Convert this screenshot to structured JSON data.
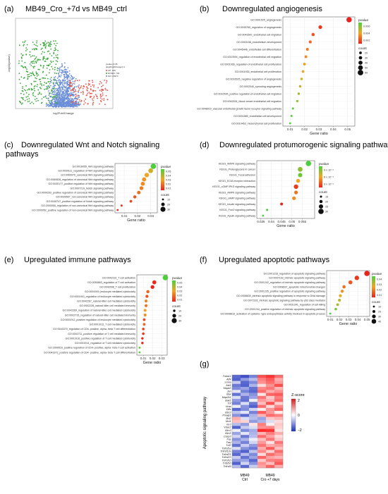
{
  "panels": {
    "a": {
      "letter": "(a)",
      "title": "MB49_Cro_+7d vs MB49_ctrl",
      "xlabel": "log2FoldChange",
      "ylabel": "-log10(pvalue)",
      "legend_lines": [
        "pvalue<0.05",
        "|log2FoldChange|>1",
        "UP: 105",
        "DOWN: 704",
        "NO: 20374"
      ]
    },
    "b": {
      "letter": "(b)",
      "title": "Downregulated angiogenesis"
    },
    "c": {
      "letter": "(c)",
      "title_line1": "Downregulated Wnt and Notch signaling",
      "title_line2": "pathways"
    },
    "d": {
      "letter": "(d)",
      "title": "Downregulated protumorogenic signaling pathways"
    },
    "e": {
      "letter": "(e)",
      "title": "Upregulated immune pathways"
    },
    "f": {
      "letter": "(f)",
      "title": "Upregulated apoptotic pathways"
    },
    "g": {
      "letter": "(g)",
      "ylabel": "Apoptotic signaling pathway",
      "zlabel": "Z-score",
      "zticks": [
        "2",
        "0",
        "−2"
      ],
      "col_labels": [
        "MB49\nCtrl",
        "MB49\nCro +7 days"
      ]
    }
  },
  "common": {
    "xlabel": "Gene ratio",
    "pvalue_label": "pvalue",
    "count_label": "count"
  },
  "chart_data": [
    {
      "panel": "b",
      "type": "scatter",
      "terms": [
        "GO:0001525_angiogenesis",
        "GO:0045765_regulation of angiogenesis",
        "GO:0043542_endothelial cell migration",
        "GO:0003158_endothelium development",
        "GO:0045446_endothelial cell differentiation",
        "GO:0010594_regulation of endothelial cell migration",
        "GO:0001936_regulation of endothelial cell proliferation",
        "GO:0001935_endothelial cell proliferation",
        "GO:0016525_negative regulation of angiogenesis",
        "GO:0002040_sprouting angiogenesis",
        "GO:0010595_positive regulation of endothelial cell migration",
        "GO:0042534_blood vessel endothelial cell migration",
        "GO:0048010_vascular endothelial growth factor receptor signaling pathway",
        "GO:0001885_endothelial cell development",
        "GO:0010463_mesenchymal cell proliferation"
      ],
      "x": [
        0.051,
        0.031,
        0.026,
        0.024,
        0.022,
        0.021,
        0.02,
        0.019,
        0.018,
        0.017,
        0.016,
        0.015,
        0.012,
        0.011,
        0.01
      ],
      "pvalue": [
        0.0001,
        0.0008,
        0.0015,
        0.002,
        0.0025,
        0.003,
        0.0035,
        0.004,
        0.0045,
        0.005,
        0.0055,
        0.006,
        0.007,
        0.0072,
        0.0075
      ],
      "count": [
        58,
        35,
        28,
        25,
        22,
        21,
        20,
        19,
        18,
        17,
        16,
        15,
        12,
        11,
        10
      ],
      "xticks": [
        "0.01",
        "0.02",
        "0.03",
        "0.04",
        "0.05"
      ],
      "xlim": [
        0.005,
        0.055
      ],
      "pvalue_ticks": [
        "0.006",
        "0.004",
        "0.002"
      ],
      "count_ticks": [
        "20",
        "30",
        "40",
        "50",
        "60"
      ]
    },
    {
      "panel": "c",
      "type": "scatter",
      "terms": [
        "GO:0016055_Wnt signaling pathway",
        "GO:0030111_regulation of Wnt signaling pathway",
        "GO:0060070_canonical Wnt signaling pathway",
        "GO:0060828_regulation of canonical Wnt signaling pathway",
        "GO:0030177_positive regulation of Wnt signaling pathway",
        "GO:0007219_Notch signaling pathway",
        "GO:0090263_positive regulation of canonical Wnt signaling pathway",
        "GO:0035567_non-canonical Wnt signaling pathway",
        "GO:0045747_positive regulation of Notch signaling pathway",
        "GO:2000050_regulation of non-canonical Wnt signaling pathway",
        "GO:2000052_positive regulation of non-canonical Wnt signaling pathway"
      ],
      "x": [
        0.032,
        0.03,
        0.027,
        0.025,
        0.024,
        0.023,
        0.021,
        0.018,
        0.015,
        0.008,
        0.005
      ],
      "pvalue": [
        0.048,
        0.03,
        0.025,
        0.022,
        0.02,
        0.018,
        0.015,
        0.012,
        0.008,
        0.004,
        0.002
      ],
      "count": [
        32,
        28,
        26,
        24,
        23,
        22,
        20,
        18,
        14,
        11,
        10
      ],
      "xticks": [
        "0.01",
        "0.02",
        "0.03"
      ],
      "xlim": [
        0.003,
        0.035
      ],
      "pvalue_ticks": [
        "0.05",
        "0.04",
        "0.03",
        "0.02",
        "0.01"
      ],
      "count_ticks": [
        "10",
        "20",
        "30"
      ]
    },
    {
      "panel": "d",
      "type": "scatter",
      "terms": [
        "KEGG_MAPK signaling pathway",
        "KEGG_Proteoglycans in cancer",
        "KEGG_Focal adhesion",
        "KEGG_ECM-receptor interaction",
        "KEGG_cGMP-PKG signaling pathway",
        "KEGG_AMPK signaling pathway",
        "KEGG_cAMP signaling pathway",
        "KEGG_Insulin signaling pathway",
        "KEGG_FoxO signaling pathway",
        "KEGG_Apelin signaling pathway"
      ],
      "x": [
        0.058,
        0.054,
        0.054,
        0.053,
        0.052,
        0.052,
        0.051,
        0.045,
        0.038,
        0.036
      ],
      "pvalue": [
        0.0011,
        0.0009,
        0.001,
        0.0006,
        0.0002,
        0.0004,
        0.0005,
        0.0001,
        0.0011,
        0.0011
      ],
      "count": [
        30,
        27,
        25,
        23,
        26,
        22,
        22,
        18,
        15,
        14
      ],
      "xticks": [
        "0.035",
        "0.04",
        "0.045",
        "0.05",
        "0.055"
      ],
      "xlim": [
        0.033,
        0.061
      ],
      "pvalue_ticks": [
        "9 x 10⁻⁴",
        "6 x 10⁻⁴",
        "3 x 10⁻⁴"
      ],
      "count_ticks": [
        "15",
        "20",
        "25",
        "30"
      ]
    },
    {
      "panel": "e",
      "type": "scatter",
      "terms": [
        "GO:0042110_T cell activation",
        "GO:0050863_regulation of T cell activation",
        "GO:0042098_T cell proliferation",
        "GO:0001909_leukocyte mediated cytotoxicity",
        "GO:0001910_regulation of leukocyte mediated cytotoxicity",
        "GO:0042267_natural killer cell mediated cytotoxicity",
        "GO:0002228_natural killer cell mediated immunity",
        "GO:0042269_regulation of natural killer cell mediated cytotoxicity",
        "GO:0002715_regulation of natural killer cell mediated immunity",
        "GO:0001912_positive regulation of leukocyte mediated cytotoxicity",
        "GO:0001913_T cell mediated cytotoxicity",
        "GO:0043370_regulation of CD4- positive, alpha- beta T cell differentiation",
        "GO:0002711_positive regulation of T cell mediated immunity",
        "GO:0001916_positive regulation of T cell mediated cytotoxicity",
        "GO:0001914_regulation of T cell mediated cytotoxicity",
        "GO:2000516_positive regulation of CD4- positive, alpha- beta T cell activation",
        "GO:0043372_positive regulation of CD4- positive, alpha- beta T cell differentiation"
      ],
      "x": [
        0.034,
        0.022,
        0.02,
        0.015,
        0.014,
        0.013,
        0.013,
        0.012,
        0.012,
        0.011,
        0.011,
        0.01,
        0.01,
        0.009,
        0.009,
        0.006,
        0.006
      ],
      "pvalue": [
        0.048,
        0.005,
        0.004,
        0.015,
        0.012,
        0.02,
        0.018,
        0.025,
        0.022,
        0.01,
        0.015,
        0.008,
        0.006,
        0.004,
        0.005,
        0.045,
        0.047
      ],
      "count": [
        32,
        22,
        20,
        16,
        15,
        14,
        14,
        13,
        13,
        12,
        12,
        11,
        11,
        10,
        10,
        7,
        7
      ],
      "xticks": [
        "0.01",
        "0.02",
        "0.03"
      ],
      "xlim": [
        0.003,
        0.036
      ],
      "pvalue_ticks": [
        "0.05",
        "0.04",
        "0.03",
        "0.02",
        "0.01"
      ],
      "count_ticks": [
        "10",
        "20",
        "30"
      ]
    },
    {
      "panel": "f",
      "type": "scatter",
      "terms": [
        "GO:2001233_regulation of apoptotic signaling pathway",
        "GO:0097193_intrinsic apoptotic signaling pathway",
        "GO:2001242_regulation of intrinsic apoptotic signaling pathway",
        "GO:0008637_apoptotic mitochondrial changes",
        "GO:2001235_positive regulation of apoptotic signaling pathway",
        "GO:0008630_intrinsic apoptotic signaling pathway in response to DNA damage",
        "GO:0072332_intrinsic apoptotic signaling pathway by p53 class mediator",
        "GO:0031341_regulation of cell killing",
        "GO:2001244_positive regulation of intrinsic apoptotic signaling pathway",
        "GO:0008616_activation of cysteine- type endopeptidase activity involved in apoptotic process"
      ],
      "x": [
        0.05,
        0.039,
        0.032,
        0.025,
        0.023,
        0.021,
        0.02,
        0.018,
        0.016,
        0.01
      ],
      "pvalue": [
        0.005,
        0.008,
        0.012,
        0.016,
        0.02,
        0.024,
        0.028,
        0.03,
        0.035,
        0.04
      ],
      "count": [
        48,
        38,
        32,
        25,
        23,
        21,
        20,
        18,
        16,
        10
      ],
      "xticks": [
        "0.01",
        "0.02",
        "0.03",
        "0.04",
        "0.05"
      ],
      "xlim": [
        0.006,
        0.053
      ],
      "pvalue_ticks": [
        "0.04",
        "0.03",
        "0.02",
        "0.01"
      ],
      "count_ticks": [
        "10",
        "20",
        "30",
        "40"
      ]
    },
    {
      "panel": "g",
      "type": "heatmap",
      "genes": [
        "Tuba1c",
        "Atf4",
        "Lmna",
        "Akt1",
        "Mapk3",
        "Jun",
        "Bax",
        "Map2k1",
        "Bak1",
        "Tnf",
        "Hras",
        "Dffa",
        "Bbc3",
        "Pmaip1",
        "Bcl2",
        "Mcl1",
        "Ier3",
        "Vdac2",
        "Birc3",
        "Birc5",
        "Casp3",
        "Fas",
        "Fasl",
        "Tnf2",
        "Tnfrsf1a",
        "Tnfrsf12a",
        "Tnfrsf21",
        "Tnfrsf23",
        "Tnfrsf1b",
        "Tnfsf10",
        "Tnfrsf9"
      ],
      "zlim": [
        -2.5,
        2.5
      ],
      "values": [
        [
          -1.8,
          -2.1,
          -1.5,
          1.9,
          2.2,
          1.6
        ],
        [
          -1.9,
          -1.2,
          -0.8,
          1.4,
          1.8,
          0.9
        ],
        [
          -0.6,
          -1.8,
          -1.4,
          1.2,
          1.6,
          1.1
        ],
        [
          -1.6,
          -1.9,
          -0.9,
          0.4,
          1.2,
          1.9
        ],
        [
          -1.4,
          -1.1,
          -1.7,
          1.3,
          1.5,
          0.8
        ],
        [
          -0.3,
          -1.5,
          -1.8,
          1.6,
          0.9,
          1.2
        ],
        [
          -1.7,
          -0.9,
          -1.3,
          0.3,
          1.7,
          1.8
        ],
        [
          -0.4,
          -1.6,
          -1.1,
          1.5,
          0.6,
          1.4
        ],
        [
          -1.2,
          -1.7,
          -0.2,
          1.1,
          0.8,
          1.6
        ],
        [
          -1.5,
          -0.4,
          -1.6,
          0.7,
          1.9,
          0.5
        ],
        [
          -0.2,
          -1.3,
          -1.9,
          1.6,
          0.4,
          1.3
        ],
        [
          -1.8,
          -1.4,
          -0.5,
          0.2,
          1.2,
          1.7
        ],
        [
          -0.7,
          -0.3,
          -1.5,
          1.8,
          1.1,
          0.2
        ],
        [
          -1.3,
          -1.8,
          -0.9,
          0.8,
          1.6,
          1.4
        ],
        [
          0.9,
          -0.4,
          -0.8,
          -1.1,
          0.6,
          0.8
        ],
        [
          0.7,
          0.5,
          -1.2,
          -0.9,
          -0.4,
          0.4
        ],
        [
          -0.8,
          -1.2,
          0.3,
          1.4,
          0.2,
          0.6
        ],
        [
          -1.9,
          -0.6,
          -0.4,
          1.2,
          1.3,
          0.5
        ],
        [
          -0.2,
          -1.4,
          -1.0,
          2.3,
          2.2,
          0.3
        ],
        [
          -1.1,
          -0.3,
          -0.9,
          0.8,
          1.4,
          0.9
        ],
        [
          -0.5,
          -1.6,
          -0.8,
          1.6,
          1.0,
          0.4
        ],
        [
          -1.3,
          -0.9,
          -0.2,
          0.7,
          1.5,
          0.6
        ],
        [
          -0.9,
          -1.5,
          -0.5,
          1.1,
          0.3,
          1.5
        ],
        [
          -1.7,
          -0.6,
          -1.2,
          1.5,
          0.9,
          1.1
        ],
        [
          -0.4,
          -1.3,
          -1.6,
          0.9,
          1.8,
          0.7
        ],
        [
          -1.5,
          -1.9,
          -0.7,
          1.3,
          0.5,
          1.6
        ],
        [
          -1.8,
          -0.8,
          -1.4,
          0.4,
          1.6,
          1.2
        ],
        [
          -0.6,
          -1.7,
          -1.1,
          1.7,
          1.0,
          0.8
        ],
        [
          -1.2,
          -1.1,
          -1.8,
          0.6,
          1.4,
          1.5
        ],
        [
          -1.9,
          -0.5,
          -1.3,
          1.2,
          0.7,
          1.8
        ],
        [
          -0.8,
          -1.8,
          -0.6,
          1.0,
          1.7,
          0.9
        ]
      ]
    }
  ]
}
